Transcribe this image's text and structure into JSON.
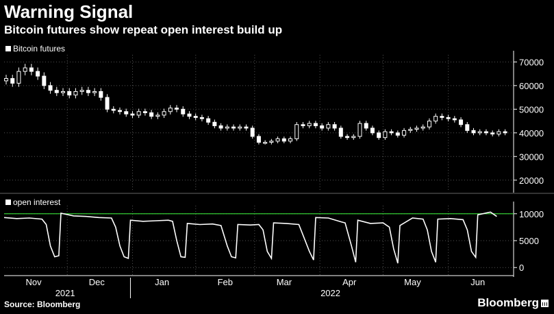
{
  "header": {
    "title": "Warning Signal",
    "subtitle": "Bitcoin futures show repeat open interest build up"
  },
  "footer": {
    "source": "Source: Bloomberg",
    "brand": "Bloomberg"
  },
  "colors": {
    "background": "#000000",
    "series": "#ffffff",
    "reference_line": "#33cc33",
    "grid": "#555555"
  },
  "chart_data": [
    {
      "type": "candlestick",
      "legend": "Bitcoin futures",
      "ylim": [
        15000,
        73000
      ],
      "yticks": [
        20000,
        30000,
        40000,
        50000,
        60000,
        70000
      ],
      "ytick_labels": [
        "20000",
        "30000",
        "40000",
        "50000",
        "60000",
        "70000"
      ],
      "grid": true,
      "x_range": [
        0,
        242
      ],
      "points": [
        [
          0,
          62000
        ],
        [
          3,
          63000
        ],
        [
          6,
          61000
        ],
        [
          9,
          66000
        ],
        [
          12,
          67500
        ],
        [
          15,
          66000
        ],
        [
          18,
          64000
        ],
        [
          21,
          60000
        ],
        [
          24,
          58000
        ],
        [
          27,
          57000
        ],
        [
          30,
          57500
        ],
        [
          33,
          56000
        ],
        [
          36,
          57500
        ],
        [
          39,
          58000
        ],
        [
          42,
          57000
        ],
        [
          45,
          57500
        ],
        [
          48,
          55000
        ],
        [
          51,
          50000
        ],
        [
          54,
          49500
        ],
        [
          57,
          49000
        ],
        [
          60,
          48000
        ],
        [
          63,
          47500
        ],
        [
          66,
          49000
        ],
        [
          69,
          48500
        ],
        [
          72,
          47000
        ],
        [
          75,
          47500
        ],
        [
          78,
          49000
        ],
        [
          81,
          50500
        ],
        [
          84,
          50000
        ],
        [
          87,
          48000
        ],
        [
          90,
          47000
        ],
        [
          93,
          46500
        ],
        [
          96,
          46000
        ],
        [
          99,
          44500
        ],
        [
          102,
          43000
        ],
        [
          105,
          42000
        ],
        [
          108,
          42500
        ],
        [
          111,
          42000
        ],
        [
          114,
          42500
        ],
        [
          117,
          42000
        ],
        [
          120,
          38500
        ],
        [
          123,
          36000
        ],
        [
          126,
          36000
        ],
        [
          129,
          36500
        ],
        [
          132,
          37500
        ],
        [
          135,
          36500
        ],
        [
          138,
          37500
        ],
        [
          141,
          43500
        ],
        [
          144,
          43000
        ],
        [
          147,
          44000
        ],
        [
          150,
          43000
        ],
        [
          153,
          42000
        ],
        [
          156,
          43500
        ],
        [
          159,
          42000
        ],
        [
          162,
          38500
        ],
        [
          165,
          38000
        ],
        [
          168,
          38500
        ],
        [
          171,
          44000
        ],
        [
          174,
          42000
        ],
        [
          177,
          40000
        ],
        [
          180,
          38000
        ],
        [
          183,
          40500
        ],
        [
          186,
          40000
        ],
        [
          189,
          39000
        ],
        [
          192,
          41000
        ],
        [
          195,
          41500
        ],
        [
          198,
          42000
        ],
        [
          201,
          42500
        ],
        [
          204,
          45000
        ],
        [
          207,
          47000
        ],
        [
          210,
          46500
        ],
        [
          213,
          46000
        ],
        [
          216,
          45500
        ],
        [
          219,
          43500
        ],
        [
          222,
          41000
        ],
        [
          225,
          40000
        ],
        [
          228,
          40500
        ],
        [
          231,
          40000
        ],
        [
          234,
          39500
        ],
        [
          237,
          40500
        ],
        [
          240,
          40000
        ]
      ]
    },
    {
      "type": "line",
      "legend": "open interest",
      "ylim": [
        -1500,
        11500
      ],
      "yticks": [
        0,
        5000,
        10000
      ],
      "ytick_labels": [
        "0",
        "5000",
        "10000"
      ],
      "reference_value": 10000,
      "grid": true,
      "x_range": [
        0,
        242
      ],
      "points": [
        [
          0,
          9300
        ],
        [
          6,
          9100
        ],
        [
          12,
          9200
        ],
        [
          18,
          9000
        ],
        [
          20,
          8000
        ],
        [
          22,
          4000
        ],
        [
          24,
          2000
        ],
        [
          26,
          2200
        ],
        [
          27,
          10100
        ],
        [
          33,
          9600
        ],
        [
          39,
          9500
        ],
        [
          45,
          9300
        ],
        [
          51,
          9200
        ],
        [
          53,
          7500
        ],
        [
          55,
          4000
        ],
        [
          57,
          2000
        ],
        [
          59,
          1700
        ],
        [
          60,
          8800
        ],
        [
          66,
          8600
        ],
        [
          72,
          8700
        ],
        [
          78,
          8800
        ],
        [
          80,
          8600
        ],
        [
          82,
          5000
        ],
        [
          84,
          2000
        ],
        [
          86,
          1900
        ],
        [
          87,
          8200
        ],
        [
          93,
          8000
        ],
        [
          99,
          8100
        ],
        [
          103,
          7800
        ],
        [
          106,
          4000
        ],
        [
          108,
          2000
        ],
        [
          110,
          1800
        ],
        [
          111,
          8000
        ],
        [
          117,
          7900
        ],
        [
          121,
          8000
        ],
        [
          123,
          7000
        ],
        [
          125,
          3000
        ],
        [
          127,
          1700
        ],
        [
          128,
          8300
        ],
        [
          134,
          8200
        ],
        [
          140,
          8000
        ],
        [
          142,
          6000
        ],
        [
          145,
          3000
        ],
        [
          147,
          1400
        ],
        [
          148,
          9300
        ],
        [
          154,
          9200
        ],
        [
          160,
          8500
        ],
        [
          162,
          8300
        ],
        [
          165,
          4000
        ],
        [
          167,
          1000
        ],
        [
          168,
          8800
        ],
        [
          174,
          8200
        ],
        [
          180,
          8300
        ],
        [
          183,
          7500
        ],
        [
          185,
          3500
        ],
        [
          187,
          800
        ],
        [
          188,
          7800
        ],
        [
          194,
          9200
        ],
        [
          199,
          9000
        ],
        [
          201,
          7000
        ],
        [
          203,
          3000
        ],
        [
          205,
          1000
        ],
        [
          206,
          9000
        ],
        [
          212,
          9100
        ],
        [
          218,
          8900
        ],
        [
          220,
          7000
        ],
        [
          222,
          3000
        ],
        [
          224,
          1900
        ],
        [
          225,
          9800
        ],
        [
          231,
          10300
        ],
        [
          234,
          9500
        ]
      ]
    }
  ],
  "x_axis": {
    "months": [
      {
        "label": "Nov",
        "pos": 14
      },
      {
        "label": "Dec",
        "pos": 44
      },
      {
        "label": "Jan",
        "pos": 75
      },
      {
        "label": "Feb",
        "pos": 105
      },
      {
        "label": "Mar",
        "pos": 133
      },
      {
        "label": "Apr",
        "pos": 164
      },
      {
        "label": "May",
        "pos": 194
      },
      {
        "label": "Jun",
        "pos": 225
      }
    ],
    "years": [
      {
        "label": "2021",
        "pos": 29
      },
      {
        "label": "2022",
        "pos": 155
      }
    ],
    "year_divider": 60
  }
}
